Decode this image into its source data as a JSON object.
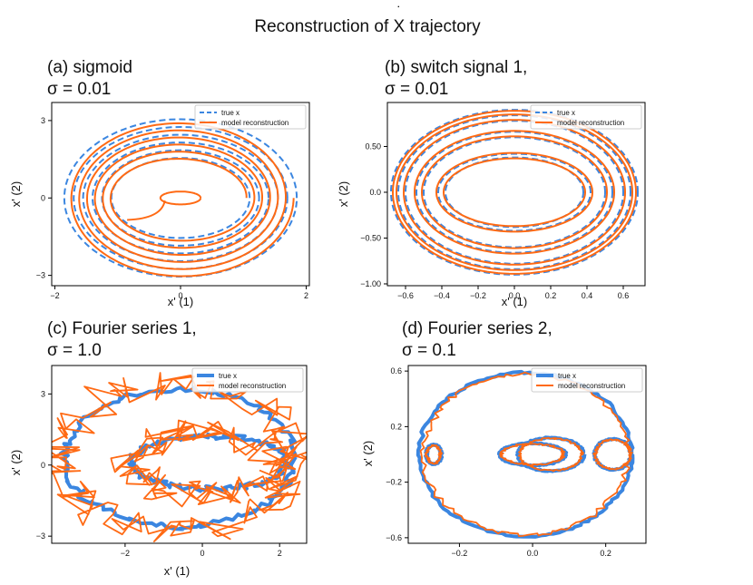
{
  "figure_title_prefix": "Reconstruction of ",
  "figure_title_symbol": "X",
  "figure_title_suffix": " trajectory",
  "colors": {
    "true": "#3b86e0",
    "model": "#ff6a14",
    "axis": "#000000"
  },
  "chart_data": [
    {
      "id": "a",
      "type": "line",
      "title_line1": "(a) sigmoid",
      "title_line2": "σ = 0.01",
      "xlabel": "x' (1)",
      "ylabel": "x' (2)",
      "xlim": [
        -2.05,
        2.05
      ],
      "ylim": [
        -3.4,
        3.7
      ],
      "xticks": [
        {
          "v": -2,
          "label": "−2"
        },
        {
          "v": 0,
          "label": "0"
        },
        {
          "v": 2,
          "label": "2"
        }
      ],
      "yticks": [
        {
          "v": -3,
          "label": "−3"
        },
        {
          "v": 0,
          "label": "0"
        },
        {
          "v": 3,
          "label": "3"
        }
      ],
      "legend": [
        "true x",
        "model reconstruction"
      ],
      "legend_position": "upper-right",
      "true_style": "dashed",
      "series_true": {
        "kind": "rings",
        "cx": 0,
        "cy": 0,
        "rx": [
          1.1,
          1.25,
          1.4,
          1.55,
          1.7,
          1.85
        ],
        "ry": [
          1.55,
          1.85,
          2.15,
          2.45,
          2.75,
          3.05
        ]
      },
      "series_model": {
        "kind": "spiral",
        "rx_start": 1.05,
        "rx_end": 1.8,
        "ry_start": 1.45,
        "ry_end": 3.1,
        "turns": 6,
        "inner_cx": 0,
        "inner_cy": 0,
        "inner_rx": 0.32,
        "inner_ry": 0.25
      }
    },
    {
      "id": "b",
      "type": "line",
      "title_line1": "(b) switch signal 1,",
      "title_line2": "σ = 0.01",
      "xlabel": "x' (1)",
      "ylabel": "x' (2)",
      "xlim": [
        -0.7,
        0.72
      ],
      "ylim": [
        -1.02,
        0.98
      ],
      "xticks": [
        {
          "v": -0.6,
          "label": "−0.6"
        },
        {
          "v": -0.4,
          "label": "−0.4"
        },
        {
          "v": -0.2,
          "label": "−0.2"
        },
        {
          "v": 0,
          "label": "0.0"
        },
        {
          "v": 0.2,
          "label": "0.2"
        },
        {
          "v": 0.4,
          "label": "0.4"
        },
        {
          "v": 0.6,
          "label": "0.6"
        }
      ],
      "yticks": [
        {
          "v": -1,
          "label": "−1.00"
        },
        {
          "v": -0.5,
          "label": "−0.50"
        },
        {
          "v": 0,
          "label": "0.0"
        },
        {
          "v": 0.5,
          "label": "0.50"
        }
      ],
      "legend": [
        "true x",
        "model reconstruction"
      ],
      "legend_position": "upper-right",
      "true_style": "dashed",
      "series_true": {
        "kind": "rings",
        "cx": 0,
        "cy": 0,
        "rx": [
          0.38,
          0.42,
          0.5,
          0.54,
          0.6,
          0.64,
          0.68
        ],
        "ry": [
          0.38,
          0.42,
          0.6,
          0.66,
          0.78,
          0.84,
          0.9
        ]
      },
      "series_model": {
        "kind": "rings",
        "cx": 0,
        "cy": 0,
        "rx": [
          0.39,
          0.43,
          0.51,
          0.55,
          0.61,
          0.65,
          0.67
        ],
        "ry": [
          0.37,
          0.43,
          0.61,
          0.67,
          0.79,
          0.85,
          0.89
        ]
      }
    },
    {
      "id": "c",
      "type": "line",
      "title_line1": "(c) Fourier series 1,",
      "title_line2": "σ = 1.0",
      "xlabel": "x' (1)",
      "ylabel": "x' (2)",
      "xlim": [
        -3.9,
        2.7
      ],
      "ylim": [
        -3.3,
        4.2
      ],
      "xticks": [
        {
          "v": -2,
          "label": "−2"
        },
        {
          "v": 0,
          "label": "0"
        },
        {
          "v": 2,
          "label": "2"
        }
      ],
      "yticks": [
        {
          "v": -3,
          "label": "−3"
        },
        {
          "v": 0,
          "label": "0"
        },
        {
          "v": 3,
          "label": "3"
        }
      ],
      "legend": [
        "true x",
        "model reconstruction"
      ],
      "legend_position": "upper-right",
      "true_style": "thick",
      "series_true": {
        "kind": "noisy_rings",
        "rings": [
          {
            "cx": -0.6,
            "cy": 0.3,
            "rx": 3.0,
            "ry": 2.9
          },
          {
            "cx": 0.2,
            "cy": 0.1,
            "rx": 2.0,
            "ry": 1.1
          }
        ],
        "noise": 0.12
      },
      "series_model": {
        "kind": "noisy_rings",
        "rings": [
          {
            "cx": -0.7,
            "cy": 0.3,
            "rx": 3.1,
            "ry": 3.1
          },
          {
            "cx": 0.1,
            "cy": 0.0,
            "rx": 1.9,
            "ry": 1.3
          }
        ],
        "noise": 0.6
      }
    },
    {
      "id": "d",
      "type": "line",
      "title_line1": "(d) Fourier series 2,",
      "title_line2": "σ = 0.1",
      "xlabel": "",
      "ylabel": "x' (2)",
      "xlim": [
        -0.34,
        0.31
      ],
      "ylim": [
        -0.64,
        0.64
      ],
      "xticks": [
        {
          "v": -0.2,
          "label": "−0.2"
        },
        {
          "v": 0,
          "label": "0.0"
        },
        {
          "v": 0.2,
          "label": "0.2"
        }
      ],
      "yticks": [
        {
          "v": -0.6,
          "label": "−0.6"
        },
        {
          "v": -0.2,
          "label": "−0.2"
        },
        {
          "v": 0.2,
          "label": "0.2"
        },
        {
          "v": 0.6,
          "label": "0.6"
        }
      ],
      "legend": [
        "true x",
        "model reconstruction"
      ],
      "legend_position": "upper-right",
      "true_style": "thick",
      "series_true": {
        "kind": "noisy_rings",
        "rings": [
          {
            "cx": -0.02,
            "cy": 0.0,
            "rx": 0.29,
            "ry": 0.59
          },
          {
            "cx": 0.0,
            "cy": 0.0,
            "rx": 0.09,
            "ry": 0.08
          },
          {
            "cx": 0.05,
            "cy": 0.0,
            "rx": 0.09,
            "ry": 0.12
          },
          {
            "cx": 0.22,
            "cy": 0.0,
            "rx": 0.05,
            "ry": 0.11
          },
          {
            "cx": -0.27,
            "cy": 0.0,
            "rx": 0.02,
            "ry": 0.07
          }
        ],
        "noise": 0.006
      },
      "series_model": {
        "kind": "noisy_rings",
        "rings": [
          {
            "cx": -0.02,
            "cy": 0.0,
            "rx": 0.28,
            "ry": 0.58
          },
          {
            "cx": 0.0,
            "cy": 0.0,
            "rx": 0.085,
            "ry": 0.075
          },
          {
            "cx": 0.05,
            "cy": 0.0,
            "rx": 0.085,
            "ry": 0.115
          },
          {
            "cx": 0.22,
            "cy": 0.0,
            "rx": 0.048,
            "ry": 0.105
          },
          {
            "cx": -0.27,
            "cy": 0.0,
            "rx": 0.018,
            "ry": 0.065
          }
        ],
        "noise": 0.01
      }
    }
  ]
}
